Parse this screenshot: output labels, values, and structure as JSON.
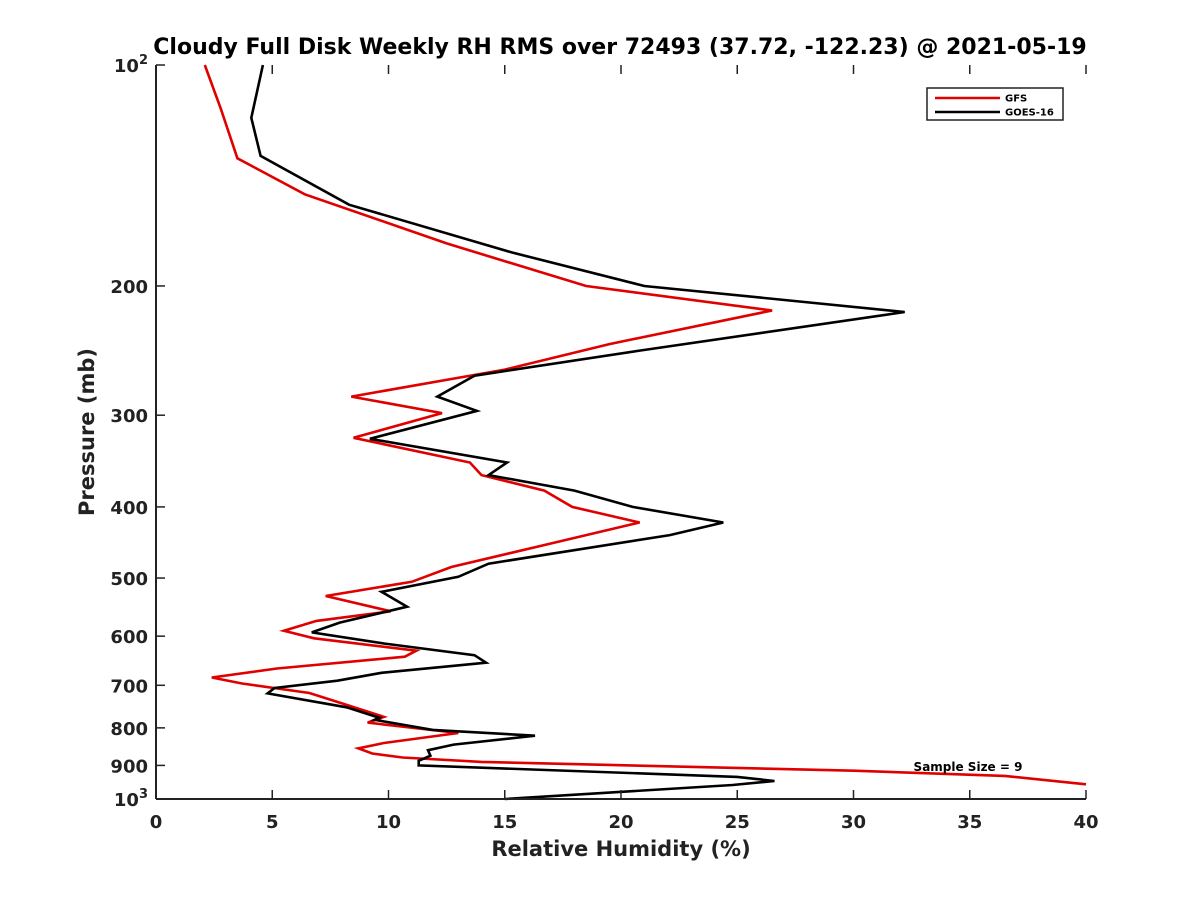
{
  "chart_data": {
    "type": "line",
    "title": "Cloudy Full Disk Weekly RH RMS over 72493 (37.72, -122.23) @ 2021-05-19",
    "xlabel": "Relative Humidity (%)",
    "ylabel": "Pressure (mb)",
    "xlim": [
      0,
      40
    ],
    "ylim": [
      100,
      1000
    ],
    "yscale": "log",
    "y_reversed": true,
    "grid": false,
    "legend_position": "top-right",
    "x_ticks": [
      0,
      5,
      10,
      15,
      20,
      25,
      30,
      35,
      40
    ],
    "x_tick_labels": [
      "0",
      "5",
      "10",
      "15",
      "20",
      "25",
      "30",
      "35",
      "40"
    ],
    "y_ticks": [
      100,
      200,
      300,
      400,
      500,
      600,
      700,
      800,
      900,
      1000
    ],
    "y_tick_labels": [
      {
        "base": "10",
        "sup": "2"
      },
      {
        "base": "200",
        "sup": ""
      },
      {
        "base": "300",
        "sup": ""
      },
      {
        "base": "400",
        "sup": ""
      },
      {
        "base": "500",
        "sup": ""
      },
      {
        "base": "600",
        "sup": ""
      },
      {
        "base": "700",
        "sup": ""
      },
      {
        "base": "800",
        "sup": ""
      },
      {
        "base": "900",
        "sup": ""
      },
      {
        "base": "10",
        "sup": "3"
      }
    ],
    "annotation": "Sample Size = 9",
    "series": [
      {
        "name": "GFS",
        "color": "#e00000",
        "points": [
          [
            2.1,
            100
          ],
          [
            2.8,
            115
          ],
          [
            3.5,
            134
          ],
          [
            6.4,
            150
          ],
          [
            12.5,
            175
          ],
          [
            18.5,
            200
          ],
          [
            26.5,
            216
          ],
          [
            19.5,
            240
          ],
          [
            15.0,
            260
          ],
          [
            8.4,
            283
          ],
          [
            12.3,
            298
          ],
          [
            8.5,
            322
          ],
          [
            13.5,
            348
          ],
          [
            14.0,
            362
          ],
          [
            16.7,
            380
          ],
          [
            17.9,
            400
          ],
          [
            20.8,
            420
          ],
          [
            16.8,
            450
          ],
          [
            12.7,
            483
          ],
          [
            11.0,
            506
          ],
          [
            7.3,
            529
          ],
          [
            10.1,
            555
          ],
          [
            6.9,
            572
          ],
          [
            5.5,
            590
          ],
          [
            6.8,
            604
          ],
          [
            11.2,
            628
          ],
          [
            10.7,
            640
          ],
          [
            5.2,
            664
          ],
          [
            2.4,
            683
          ],
          [
            3.7,
            696
          ],
          [
            6.6,
            717
          ],
          [
            8.0,
            741
          ],
          [
            9.8,
            773
          ],
          [
            9.1,
            787
          ],
          [
            13.0,
            813
          ],
          [
            9.8,
            839
          ],
          [
            8.7,
            853
          ],
          [
            9.3,
            867
          ],
          [
            10.6,
            878
          ],
          [
            14.0,
            890
          ],
          [
            30.0,
            915
          ],
          [
            36.5,
            930
          ],
          [
            40.0,
            955
          ]
        ]
      },
      {
        "name": "GOES-16",
        "color": "#000000",
        "points": [
          [
            4.6,
            100
          ],
          [
            4.1,
            118
          ],
          [
            4.5,
            133
          ],
          [
            8.3,
            155
          ],
          [
            15.3,
            180
          ],
          [
            21.0,
            200
          ],
          [
            32.2,
            217
          ],
          [
            20.8,
            245
          ],
          [
            13.7,
            265
          ],
          [
            12.1,
            283
          ],
          [
            13.8,
            296
          ],
          [
            9.2,
            323
          ],
          [
            15.1,
            348
          ],
          [
            14.3,
            362
          ],
          [
            18.0,
            380
          ],
          [
            20.5,
            400
          ],
          [
            24.4,
            420
          ],
          [
            22.1,
            437
          ],
          [
            14.3,
            478
          ],
          [
            13.0,
            498
          ],
          [
            9.7,
            522
          ],
          [
            10.8,
            547
          ],
          [
            7.9,
            575
          ],
          [
            6.7,
            593
          ],
          [
            9.8,
            614
          ],
          [
            13.7,
            637
          ],
          [
            14.2,
            652
          ],
          [
            9.7,
            673
          ],
          [
            7.8,
            690
          ],
          [
            5.1,
            706
          ],
          [
            4.8,
            718
          ],
          [
            8.2,
            750
          ],
          [
            9.6,
            775
          ],
          [
            9.4,
            780
          ],
          [
            11.9,
            805
          ],
          [
            16.3,
            820
          ],
          [
            12.8,
            843
          ],
          [
            11.7,
            858
          ],
          [
            11.8,
            873
          ],
          [
            11.3,
            887
          ],
          [
            11.3,
            900
          ],
          [
            25.0,
            933
          ],
          [
            26.6,
            945
          ],
          [
            24.8,
            957
          ],
          [
            15.0,
            1000
          ]
        ]
      }
    ]
  }
}
